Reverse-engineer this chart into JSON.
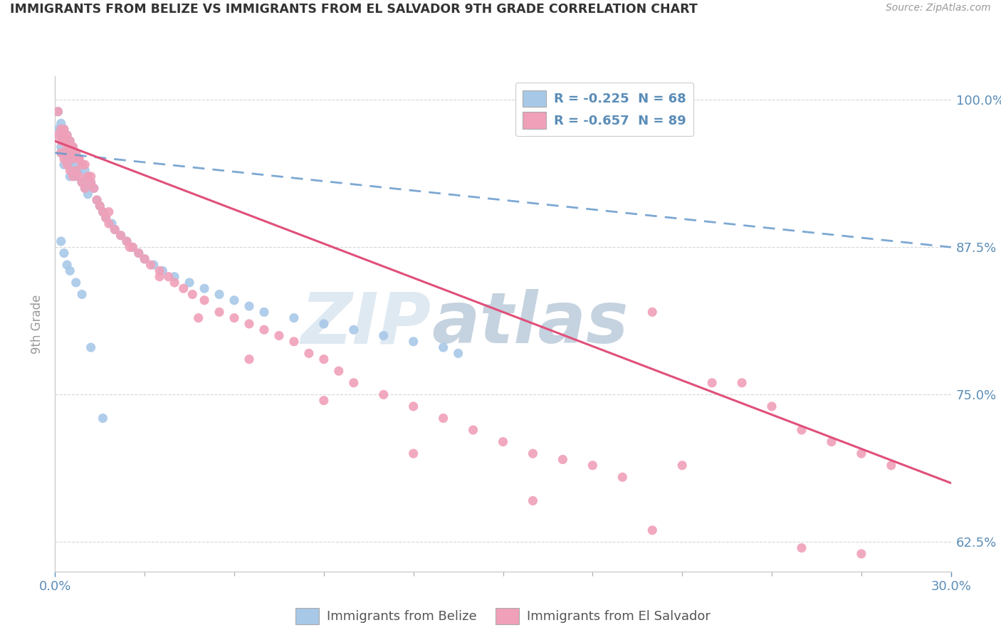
{
  "title": "IMMIGRANTS FROM BELIZE VS IMMIGRANTS FROM EL SALVADOR 9TH GRADE CORRELATION CHART",
  "source": "Source: ZipAtlas.com",
  "ylabel": "9th Grade",
  "legend1": "R = -0.225  N = 68",
  "legend2": "R = -0.657  N = 89",
  "color_belize": "#a8c8e8",
  "color_salvador": "#f0a0b8",
  "color_belize_line": "#6699cc",
  "color_salvador_line": "#e0507a",
  "color_axis_labels": "#5b8db8",
  "watermark_zip": "ZIP",
  "watermark_atlas": "atlas",
  "watermark_color_zip": "#c0d0e0",
  "watermark_color_atlas": "#7090b0",
  "xlim": [
    0.0,
    0.3
  ],
  "ylim": [
    0.6,
    1.02
  ],
  "yticks": [
    0.625,
    0.75,
    0.875,
    1.0
  ],
  "belize_line_x0": 0.0,
  "belize_line_y0": 0.955,
  "belize_line_x1": 0.3,
  "belize_line_y1": 0.875,
  "salvador_line_x0": 0.0,
  "salvador_line_y0": 0.965,
  "salvador_line_x1": 0.3,
  "salvador_line_y1": 0.675,
  "belize_pts_x": [
    0.001,
    0.001,
    0.002,
    0.002,
    0.002,
    0.002,
    0.003,
    0.003,
    0.003,
    0.003,
    0.004,
    0.004,
    0.004,
    0.005,
    0.005,
    0.005,
    0.005,
    0.006,
    0.006,
    0.006,
    0.007,
    0.007,
    0.007,
    0.008,
    0.008,
    0.009,
    0.009,
    0.01,
    0.01,
    0.011,
    0.011,
    0.012,
    0.013,
    0.014,
    0.015,
    0.016,
    0.017,
    0.019,
    0.02,
    0.022,
    0.024,
    0.026,
    0.028,
    0.03,
    0.033,
    0.036,
    0.04,
    0.045,
    0.05,
    0.055,
    0.06,
    0.065,
    0.07,
    0.08,
    0.09,
    0.1,
    0.11,
    0.12,
    0.13,
    0.135,
    0.002,
    0.003,
    0.004,
    0.005,
    0.007,
    0.009,
    0.012,
    0.016
  ],
  "belize_pts_y": [
    0.975,
    0.99,
    0.97,
    0.96,
    0.98,
    0.955,
    0.975,
    0.965,
    0.955,
    0.945,
    0.97,
    0.96,
    0.95,
    0.965,
    0.955,
    0.945,
    0.935,
    0.96,
    0.95,
    0.94,
    0.955,
    0.945,
    0.935,
    0.95,
    0.94,
    0.945,
    0.93,
    0.94,
    0.925,
    0.935,
    0.92,
    0.93,
    0.925,
    0.915,
    0.91,
    0.905,
    0.9,
    0.895,
    0.89,
    0.885,
    0.88,
    0.875,
    0.87,
    0.865,
    0.86,
    0.855,
    0.85,
    0.845,
    0.84,
    0.835,
    0.83,
    0.825,
    0.82,
    0.815,
    0.81,
    0.805,
    0.8,
    0.795,
    0.79,
    0.785,
    0.88,
    0.87,
    0.86,
    0.855,
    0.845,
    0.835,
    0.79,
    0.73
  ],
  "salvador_pts_x": [
    0.001,
    0.001,
    0.002,
    0.002,
    0.002,
    0.003,
    0.003,
    0.003,
    0.004,
    0.004,
    0.004,
    0.005,
    0.005,
    0.005,
    0.006,
    0.006,
    0.006,
    0.007,
    0.007,
    0.008,
    0.008,
    0.009,
    0.009,
    0.01,
    0.01,
    0.011,
    0.012,
    0.013,
    0.014,
    0.015,
    0.016,
    0.017,
    0.018,
    0.02,
    0.022,
    0.024,
    0.026,
    0.028,
    0.03,
    0.032,
    0.035,
    0.038,
    0.04,
    0.043,
    0.046,
    0.05,
    0.055,
    0.06,
    0.065,
    0.07,
    0.075,
    0.08,
    0.085,
    0.09,
    0.095,
    0.1,
    0.11,
    0.12,
    0.13,
    0.14,
    0.15,
    0.16,
    0.17,
    0.18,
    0.19,
    0.2,
    0.21,
    0.22,
    0.23,
    0.24,
    0.25,
    0.26,
    0.27,
    0.28,
    0.003,
    0.005,
    0.008,
    0.012,
    0.018,
    0.025,
    0.035,
    0.048,
    0.065,
    0.09,
    0.12,
    0.16,
    0.2,
    0.25,
    0.27
  ],
  "salvador_pts_y": [
    0.97,
    0.99,
    0.975,
    0.965,
    0.955,
    0.975,
    0.965,
    0.95,
    0.97,
    0.96,
    0.945,
    0.965,
    0.955,
    0.94,
    0.96,
    0.95,
    0.935,
    0.955,
    0.94,
    0.95,
    0.935,
    0.945,
    0.93,
    0.945,
    0.925,
    0.935,
    0.93,
    0.925,
    0.915,
    0.91,
    0.905,
    0.9,
    0.895,
    0.89,
    0.885,
    0.88,
    0.875,
    0.87,
    0.865,
    0.86,
    0.855,
    0.85,
    0.845,
    0.84,
    0.835,
    0.83,
    0.82,
    0.815,
    0.81,
    0.805,
    0.8,
    0.795,
    0.785,
    0.78,
    0.77,
    0.76,
    0.75,
    0.74,
    0.73,
    0.72,
    0.71,
    0.7,
    0.695,
    0.69,
    0.68,
    0.82,
    0.69,
    0.76,
    0.76,
    0.74,
    0.72,
    0.71,
    0.7,
    0.69,
    0.97,
    0.96,
    0.95,
    0.935,
    0.905,
    0.875,
    0.85,
    0.815,
    0.78,
    0.745,
    0.7,
    0.66,
    0.635,
    0.62,
    0.615
  ]
}
